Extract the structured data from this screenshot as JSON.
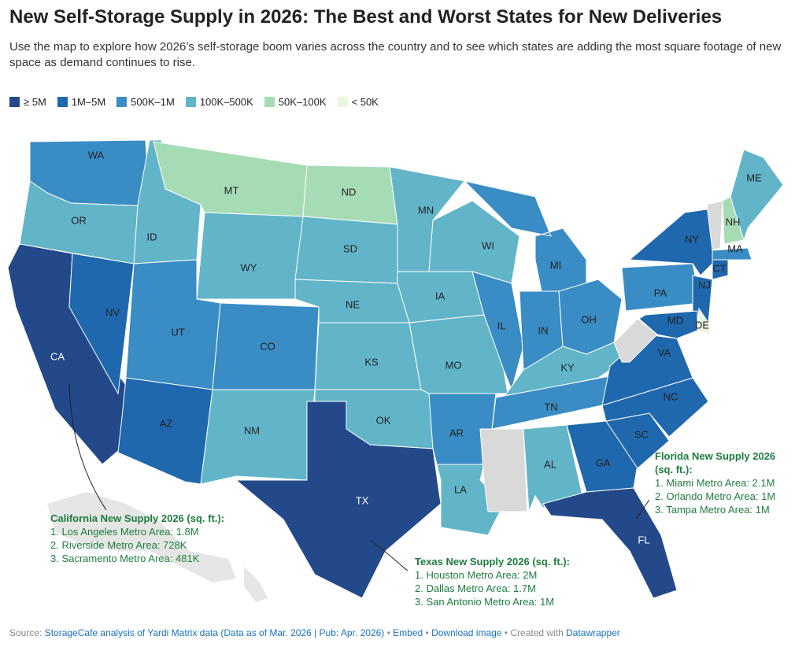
{
  "header": {
    "title": "New Self-Storage Supply in 2026: The Best and Worst States for New Deliveries",
    "subtitle": "Use the map to explore how 2026’s self-storage boom varies across the country and to see which states are adding the most square footage of new space as demand continues to rise."
  },
  "legend": [
    {
      "label": "≥ 5M",
      "color": "#23498a"
    },
    {
      "label": "1M–5M",
      "color": "#1f68ad"
    },
    {
      "label": "500K–1M",
      "color": "#3a8cc4"
    },
    {
      "label": "100K–500K",
      "color": "#62b5c9"
    },
    {
      "label": "50K–100K",
      "color": "#a6dcb5"
    },
    {
      "label": "< 50K",
      "color": "#e8f5df"
    }
  ],
  "states": [
    {
      "label": "WA",
      "color": "#3a8cc4"
    },
    {
      "label": "OR",
      "color": "#62b5c9"
    },
    {
      "label": "CA",
      "color": "#23498a"
    },
    {
      "label": "NV",
      "color": "#1f68ad"
    },
    {
      "label": "ID",
      "color": "#62b5c9"
    },
    {
      "label": "MT",
      "color": "#a6dcb5"
    },
    {
      "label": "WY",
      "color": "#62b5c9"
    },
    {
      "label": "UT",
      "color": "#3a8cc4"
    },
    {
      "label": "AZ",
      "color": "#1f68ad"
    },
    {
      "label": "CO",
      "color": "#3a8cc4"
    },
    {
      "label": "NM",
      "color": "#62b5c9"
    },
    {
      "label": "ND",
      "color": "#a6dcb5"
    },
    {
      "label": "SD",
      "color": "#62b5c9"
    },
    {
      "label": "NE",
      "color": "#62b5c9"
    },
    {
      "label": "KS",
      "color": "#62b5c9"
    },
    {
      "label": "OK",
      "color": "#62b5c9"
    },
    {
      "label": "TX",
      "color": "#23498a"
    },
    {
      "label": "MN",
      "color": "#62b5c9"
    },
    {
      "label": "IA",
      "color": "#62b5c9"
    },
    {
      "label": "MO",
      "color": "#62b5c9"
    },
    {
      "label": "AR",
      "color": "#3a8cc4"
    },
    {
      "label": "LA",
      "color": "#62b5c9"
    },
    {
      "label": "WI",
      "color": "#62b5c9"
    },
    {
      "label": "IL",
      "color": "#3a8cc4"
    },
    {
      "label": "MI",
      "color": "#3a8cc4"
    },
    {
      "label": "IN",
      "color": "#3a8cc4"
    },
    {
      "label": "OH",
      "color": "#3a8cc4"
    },
    {
      "label": "KY",
      "color": "#62b5c9"
    },
    {
      "label": "TN",
      "color": "#3a8cc4"
    },
    {
      "label": "AL",
      "color": "#62b5c9"
    },
    {
      "label": "GA",
      "color": "#1f68ad"
    },
    {
      "label": "FL",
      "color": "#23498a"
    },
    {
      "label": "SC",
      "color": "#1f68ad"
    },
    {
      "label": "NC",
      "color": "#1f68ad"
    },
    {
      "label": "VA",
      "color": "#1f68ad"
    },
    {
      "label": "PA",
      "color": "#3a8cc4"
    },
    {
      "label": "NY",
      "color": "#1f68ad"
    },
    {
      "label": "NJ",
      "color": "#1f68ad"
    },
    {
      "label": "DE",
      "color": "#e8f5df"
    },
    {
      "label": "MD",
      "color": "#1f68ad"
    },
    {
      "label": "CT",
      "color": "#1f68ad"
    },
    {
      "label": "MA",
      "color": "#3a8cc4"
    },
    {
      "label": "NH",
      "color": "#a6dcb5"
    },
    {
      "label": "ME",
      "color": "#62b5c9"
    }
  ],
  "annotations": [
    {
      "title": "California New Supply 2026 (sq. ft.):",
      "lines": [
        "1. Los Angeles Metro Area: 1.8M",
        "2. Riverside Metro Area: 728K",
        "3. Sacramento Metro Area: 481K"
      ]
    },
    {
      "title": "Texas New Supply 2026 (sq. ft.):",
      "lines": [
        "1. Houston Metro Area: 2M",
        "2. Dallas Metro Area: 1.7M",
        "3. San Antonio Metro Area: 1M"
      ]
    },
    {
      "title": "Florida New Supply 2026",
      "title2": "(sq. ft.):",
      "lines": [
        "1. Miami Metro Area: 2.1M",
        "2. Orlando Metro Area: 1M",
        "3. Tampa Metro Area: 1M"
      ]
    }
  ],
  "footer": {
    "source_label": "Source:",
    "source": "StorageCafe analysis of Yardi Matrix data (Data as of Mar. 2026 | Pub: Apr. 2026)",
    "separator": "•",
    "embed": "Embed",
    "download": "Download image",
    "created_with": "Created with",
    "tool": "Datawrapper"
  }
}
